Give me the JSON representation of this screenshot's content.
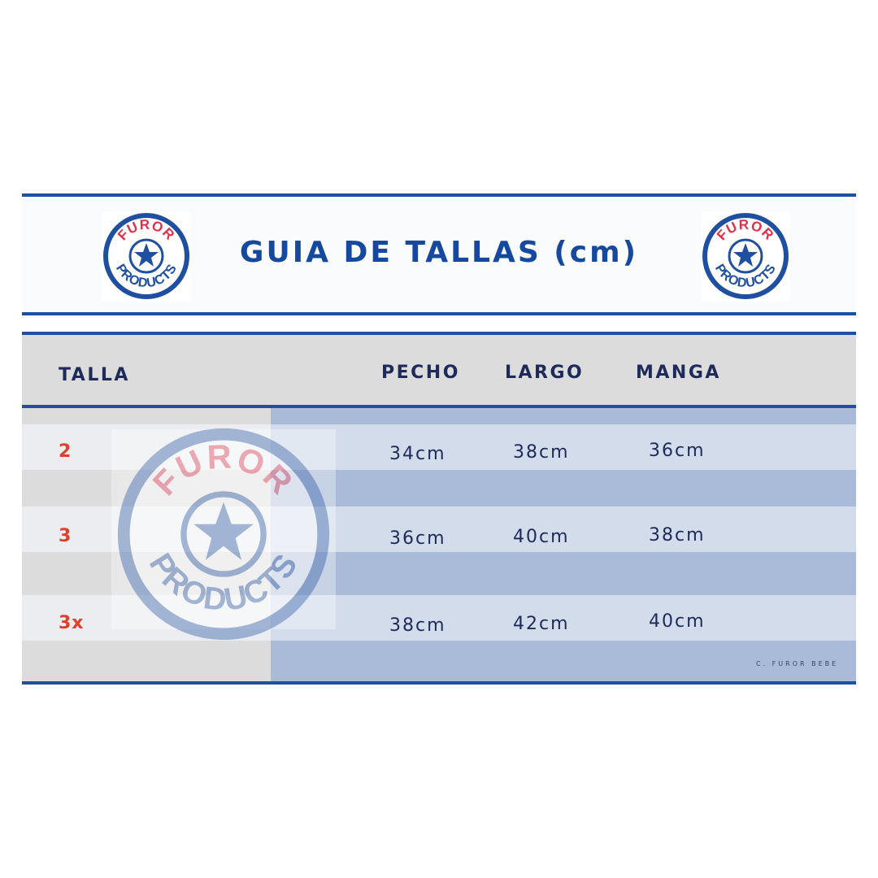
{
  "header": {
    "title": "GUIA DE TALLAS (cm)"
  },
  "logo": {
    "top_text": "FUROR",
    "bottom_text": "PRODUCTS",
    "icon": "star-icon"
  },
  "table": {
    "columns": [
      "TALLA",
      "PECHO",
      "LARGO",
      "MANGA"
    ],
    "rows": [
      {
        "talla": "2",
        "pecho": "34cm",
        "largo": "38cm",
        "manga": "36cm"
      },
      {
        "talla": "3",
        "pecho": "36cm",
        "largo": "40cm",
        "manga": "38cm"
      },
      {
        "talla": "3x",
        "pecho": "38cm",
        "largo": "42cm",
        "manga": "40cm"
      }
    ]
  },
  "footer": {
    "credit": "C. FUROR BEBE"
  },
  "colors": {
    "brand_blue": "#1549a0",
    "accent_red": "#e0402a",
    "text_navy": "#1d2a5a"
  }
}
